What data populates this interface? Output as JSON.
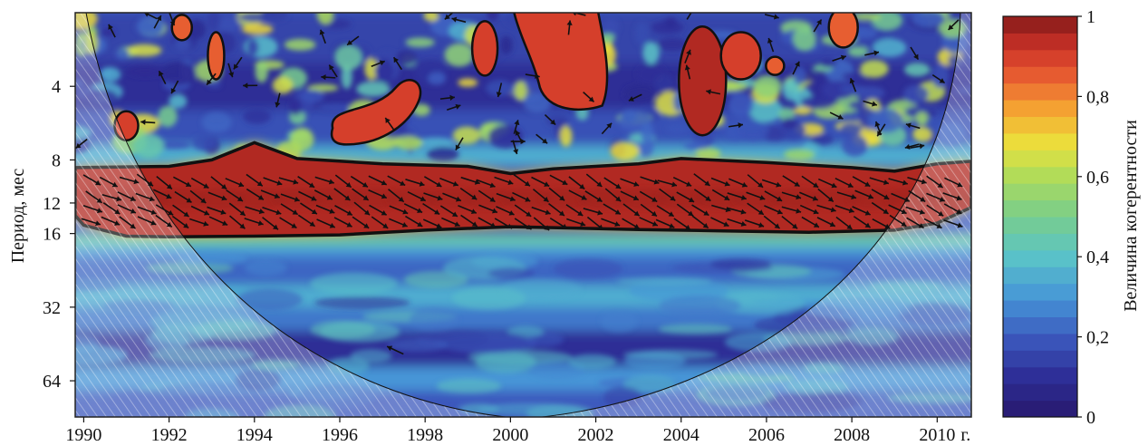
{
  "chart_data": {
    "type": "heatmap",
    "title": "",
    "ylabel": "Период, мес",
    "xlabel": "",
    "x_unit_suffix": "г.",
    "xlim": [
      1989.8,
      2010.8
    ],
    "x_ticks": [
      1990,
      1992,
      1994,
      1996,
      1998,
      2000,
      2002,
      2004,
      2006,
      2008,
      2010
    ],
    "x_tick_labels": [
      "1990",
      "1992",
      "1994",
      "1996",
      "1998",
      "2000",
      "2002",
      "2004",
      "2006",
      "2008",
      "2010"
    ],
    "y_scale": "log2",
    "ylim": [
      2,
      90
    ],
    "y_ticks": [
      4,
      8,
      12,
      16,
      32,
      64
    ],
    "y_tick_labels": [
      "4",
      "8",
      "12",
      "16",
      "32",
      "64"
    ],
    "colorbar": {
      "label": "Величина когерентности",
      "range": [
        0,
        1
      ],
      "ticks": [
        0,
        0.2,
        0.4,
        0.6,
        0.8,
        1
      ],
      "tick_labels": [
        "0",
        "0,2",
        "0,4",
        "0,6",
        "0,8",
        "1"
      ]
    },
    "significant_regions": [
      {
        "name": "annual band",
        "x_range": [
          1989.8,
          2010.8
        ],
        "period_range": [
          9,
          16
        ],
        "coherence": 0.95
      },
      {
        "name": "blob 1991",
        "x_center": 1991.0,
        "period_center": 5.8,
        "coherence": 0.9
      },
      {
        "name": "blob 1992",
        "x_center": 1992.3,
        "period_center": 2.3,
        "coherence": 0.85
      },
      {
        "name": "blob 1993",
        "x_center": 1993.1,
        "period_center": 3.0,
        "coherence": 0.85
      },
      {
        "name": "blob 1997",
        "x_center": 1997.0,
        "period_center": 5.0,
        "coherence": 0.9
      },
      {
        "name": "blob 1999",
        "x_center": 1999.4,
        "period_center": 2.8,
        "coherence": 0.9
      },
      {
        "name": "blob 2001",
        "x_center": 2001.3,
        "period_center": 3.0,
        "coherence": 0.9
      },
      {
        "name": "blob 2004",
        "x_center": 2004.5,
        "period_center": 3.8,
        "coherence": 0.95
      },
      {
        "name": "blob 2005",
        "x_center": 2005.4,
        "period_center": 3.0,
        "coherence": 0.9
      },
      {
        "name": "blob 2008",
        "x_center": 2007.8,
        "period_center": 2.3,
        "coherence": 0.85
      }
    ],
    "low_coherence_bands": [
      {
        "period_range": [
          40,
          56
        ],
        "coherence": 0.1
      },
      {
        "period_range": [
          20,
          26
        ],
        "coherence": 0.2
      }
    ],
    "cone_of_influence": true,
    "phase_arrows": true,
    "grid": false,
    "legend": "colorbar-right"
  }
}
